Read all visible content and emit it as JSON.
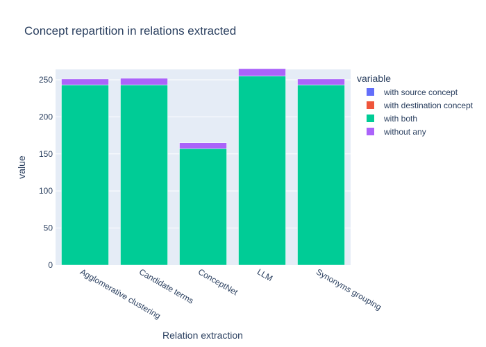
{
  "chart_data": {
    "type": "bar",
    "stacked": true,
    "title": "Concept repartition in relations extracted",
    "xlabel": "Relation extraction",
    "ylabel": "value",
    "categories": [
      "Agglomerative clustering",
      "Candidate terms",
      "ConceptNet",
      "LLM",
      "Synonyms grouping"
    ],
    "ylim": [
      0,
      264
    ],
    "yticks": [
      0,
      50,
      100,
      150,
      200,
      250
    ],
    "grid": true,
    "legend_title": "variable",
    "legend_position": "right",
    "series": [
      {
        "name": "with source concept",
        "color": "#636efa",
        "values": [
          0,
          0,
          0,
          0,
          0
        ]
      },
      {
        "name": "with destination concept",
        "color": "#EF553B",
        "values": [
          0,
          0,
          0,
          0,
          0
        ]
      },
      {
        "name": "with both",
        "color": "#00cc96",
        "values": [
          243,
          243,
          157,
          255,
          243
        ]
      },
      {
        "name": "without any",
        "color": "#ab63fa",
        "values": [
          8,
          9,
          8,
          10,
          8
        ]
      }
    ]
  }
}
